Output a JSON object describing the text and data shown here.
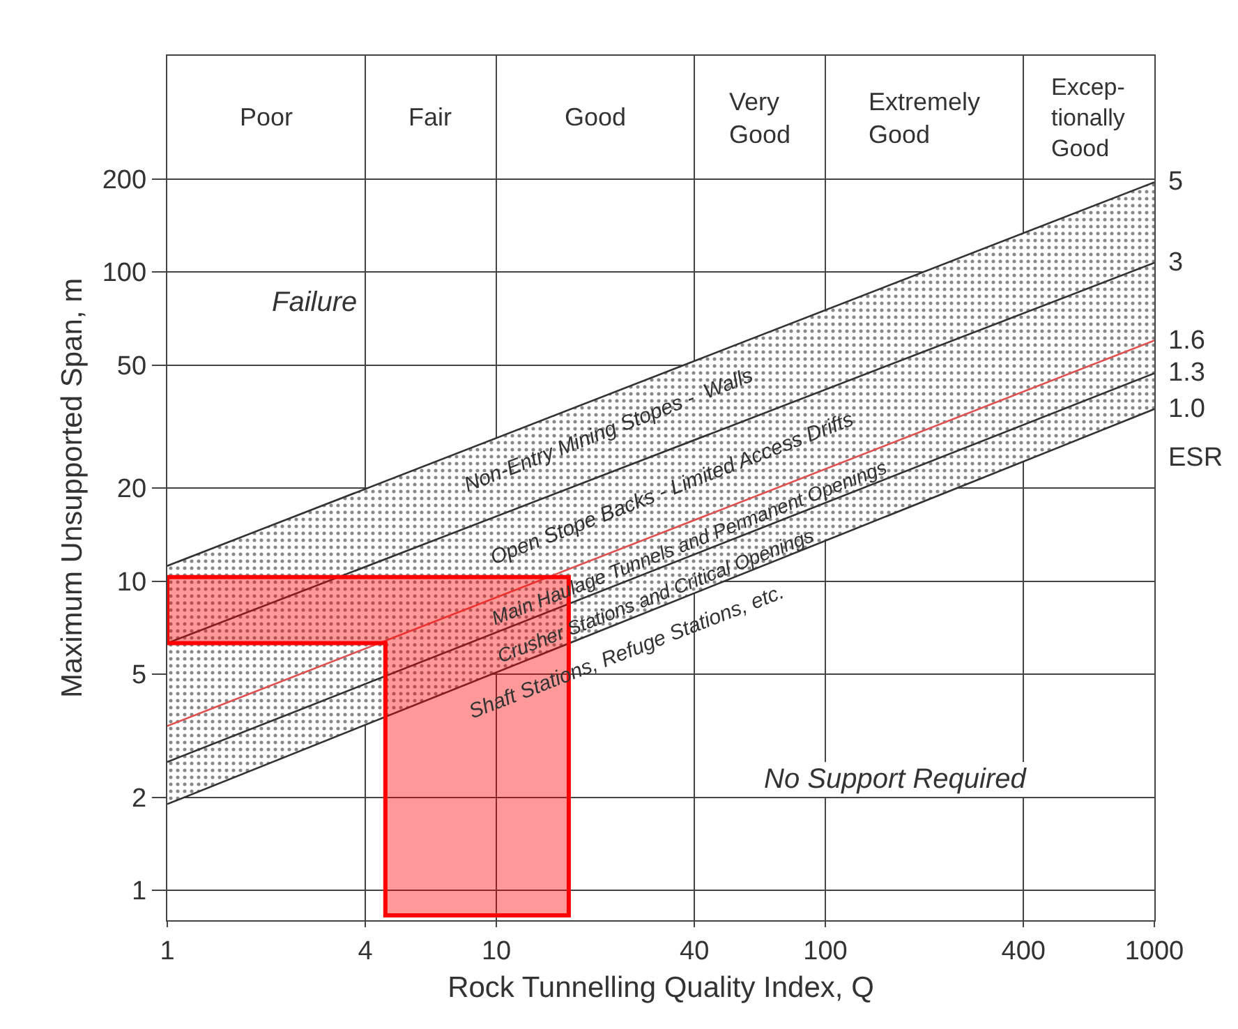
{
  "chart_data": {
    "type": "line",
    "xlabel": "Rock Tunnelling Quality Index, Q",
    "ylabel": "Maximum Unsupported Span, m",
    "log": "xy",
    "xlim": [
      1,
      1000
    ],
    "ylim": [
      0.8,
      500
    ],
    "xticks": [
      1,
      4,
      10,
      40,
      100,
      400,
      1000
    ],
    "yticks": [
      1,
      2,
      5,
      10,
      20,
      50,
      100,
      200
    ],
    "grid": true,
    "legend": false,
    "series": [
      {
        "name": "5",
        "color": "#333333",
        "x": [
          1,
          1000
        ],
        "values": [
          11.2,
          195
        ]
      },
      {
        "name": "3",
        "color": "#333333",
        "x": [
          1,
          1000
        ],
        "values": [
          6.3,
          107
        ],
        "lower": [
          1.9,
          36
        ],
        "upper": [
          11.2,
          195
        ]
      },
      {
        "name": "1.6",
        "color": "#e05050",
        "x": [
          1,
          1000
        ],
        "values": [
          3.4,
          60
        ]
      },
      {
        "name": "1.3",
        "color": "#333333",
        "x": [
          1,
          1000
        ],
        "values": [
          2.6,
          47
        ]
      },
      {
        "name": "1.0",
        "color": "#333333",
        "x": [
          1,
          1000
        ],
        "values": [
          1.9,
          36
        ]
      },
      {
        "type": "area",
        "color": "#ff0000",
        "x": [
          1,
          16.6,
          16.6,
          4.6,
          4.6,
          1,
          1
        ],
        "values": [
          10.3,
          10.3,
          0.83,
          0.83,
          6.3,
          6.3,
          10.3
        ]
      }
    ],
    "annotations": [
      "Poor",
      "Fair",
      "Good",
      "Very\nGood",
      "Extremely\nGood",
      "Excep-\ntionally\nGood",
      "Non-Entry Mining Stopes -  Walls",
      "Open Stope Backs - Limited Access Drifts",
      "Main Haulage Tunnels and Permanent Openings",
      "Crusher Stations and Critical Openings",
      "Shaft Stations, Refuge Stations, etc.",
      "Failure",
      "No Support Required",
      "ESR"
    ]
  }
}
